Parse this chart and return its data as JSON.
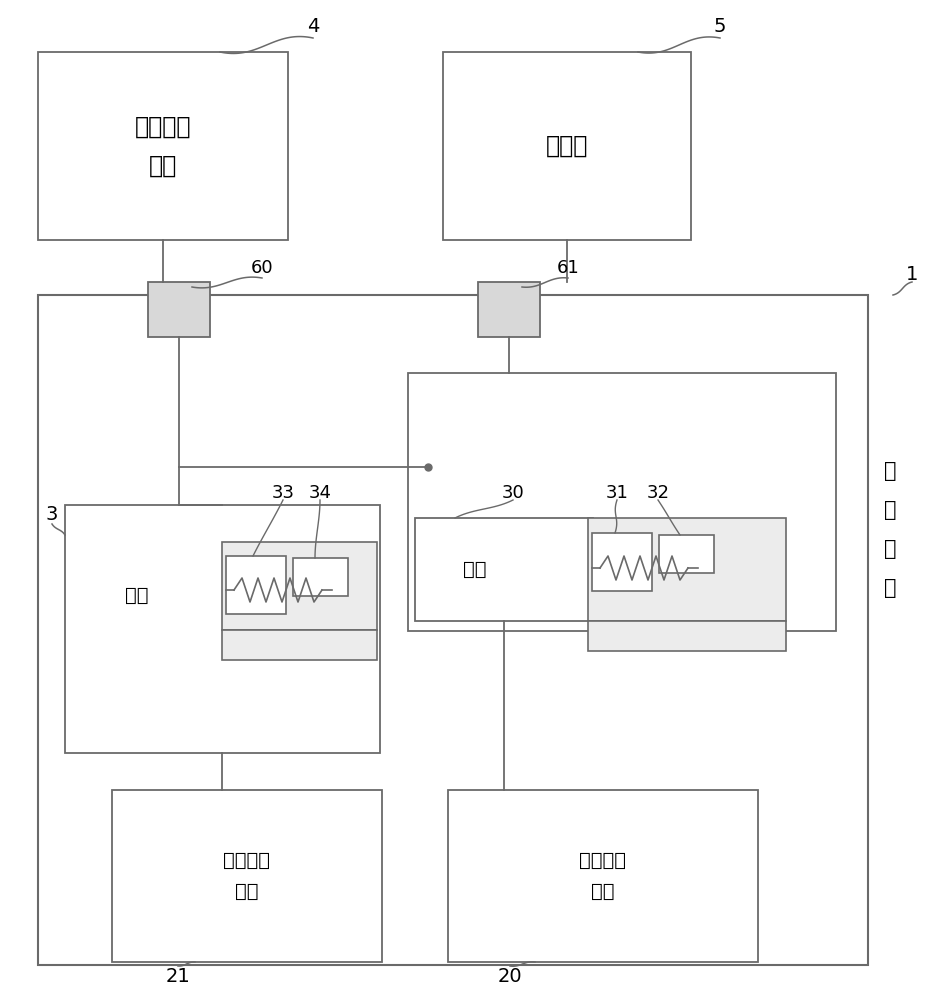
{
  "bg_color": "#ffffff",
  "lc": "#6a6a6a",
  "lw": 1.3,
  "labels": {
    "temp_module": "温度监控\n模块",
    "freq_meter": "频率计",
    "cryo_device": "低\n温\n装\n置",
    "hot_plate": "热板",
    "sapphire": "蓝宝石微\n波腔"
  }
}
